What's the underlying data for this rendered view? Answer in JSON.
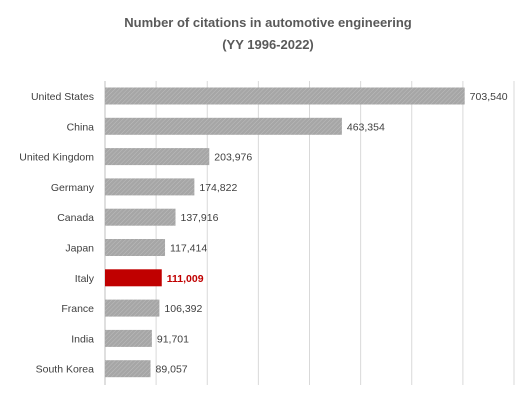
{
  "chart_data": {
    "type": "bar",
    "orientation": "horizontal",
    "title": "Number of citations in automotive engineering",
    "subtitle": "(YY 1996-2022)",
    "categories": [
      "United States",
      "China",
      "United Kingdom",
      "Germany",
      "Canada",
      "Japan",
      "Italy",
      "France",
      "India",
      "South Korea"
    ],
    "values": [
      703540,
      463354,
      203976,
      174822,
      137916,
      117414,
      111009,
      106392,
      91701,
      89057
    ],
    "value_labels": [
      "703,540",
      "463,354",
      "203,976",
      "174,822",
      "137,916",
      "117,414",
      "111,009",
      "106,392",
      "91,701",
      "89,057"
    ],
    "xlim": [
      0,
      800000
    ],
    "grid": true,
    "highlight": "Italy",
    "colors": {
      "bar": "#a6a6a6",
      "highlight_bar": "#c00000",
      "highlight_text": "#c00000",
      "grid": "#d9d9d9"
    }
  }
}
